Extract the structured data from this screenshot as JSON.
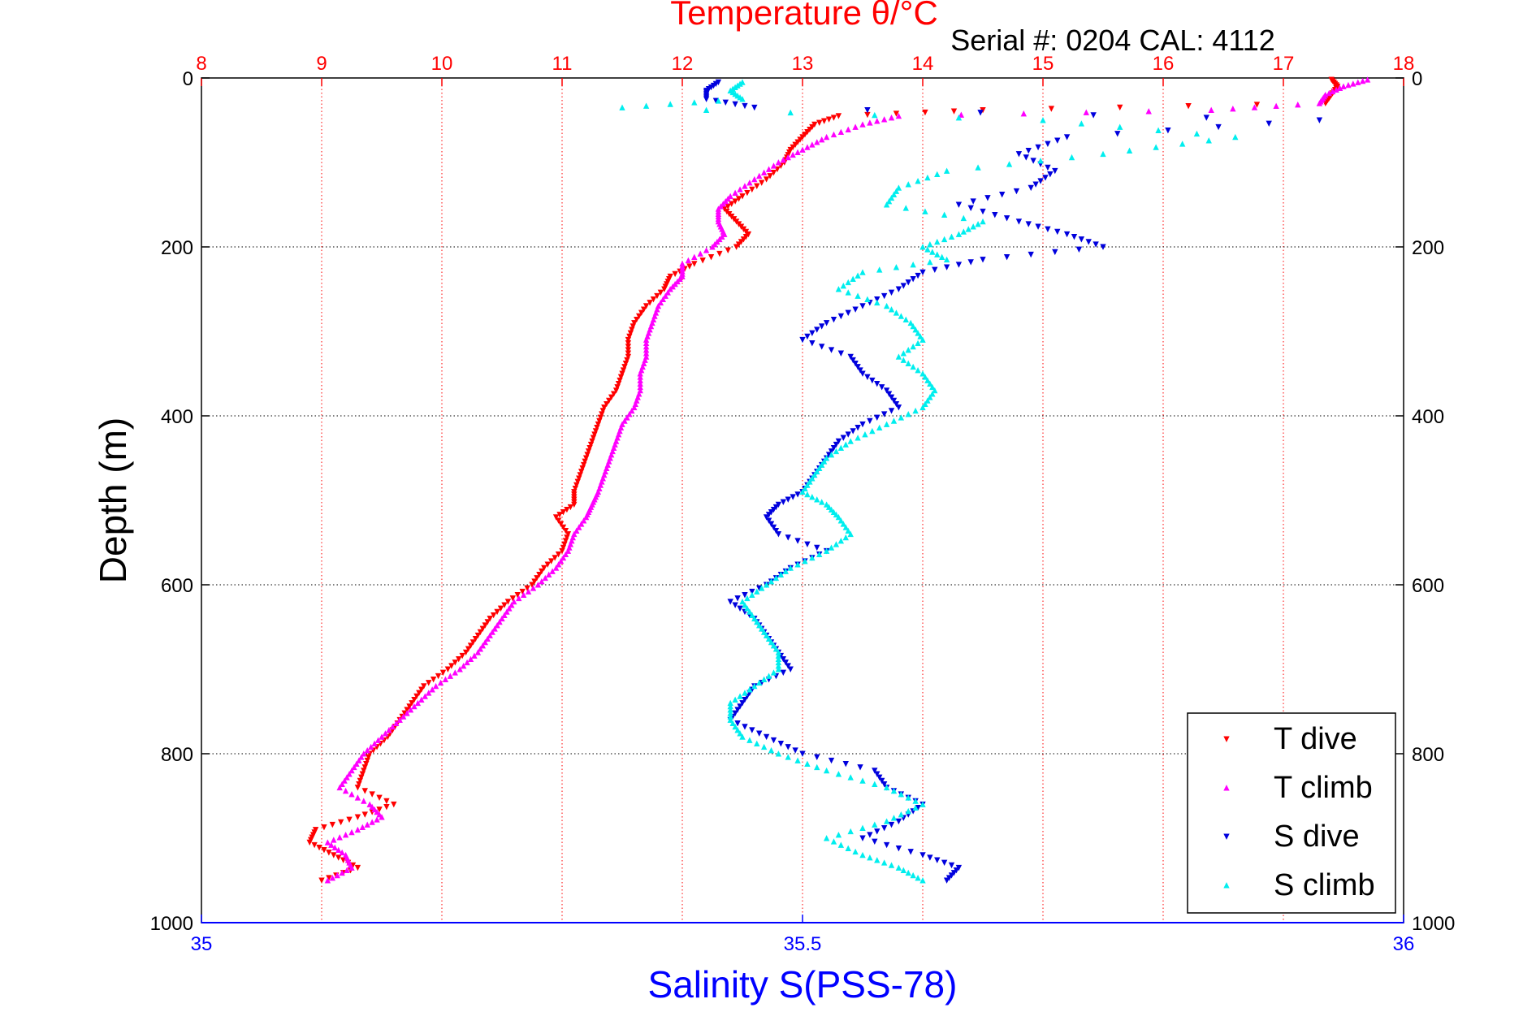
{
  "chart_data": {
    "type": "scatter",
    "title": "Temperature θ/°C",
    "subtitle": "Serial #: 0204  CAL: 4112",
    "xlabel": "Salinity S(PSS-78)",
    "ylabel": "Depth (m)",
    "x_temperature_lim": [
      8,
      18
    ],
    "x_salinity_lim": [
      35,
      36
    ],
    "ylim": [
      0,
      1000
    ],
    "y_reversed": true,
    "temperature_ticks": [
      "8",
      "9",
      "10",
      "11",
      "12",
      "13",
      "14",
      "15",
      "16",
      "17",
      "18"
    ],
    "salinity_ticks": [
      "35",
      "35.5",
      "36"
    ],
    "depth_ticks": [
      "0",
      "200",
      "400",
      "600",
      "800",
      "1000"
    ],
    "grid": true,
    "legend_position": "bottom-right",
    "colors": {
      "temperature_axis": "#ff0000",
      "salinity_axis": "#0000ff",
      "t_dive": "#ff0000",
      "t_climb": "#ff00ff",
      "s_dive": "#0000dd",
      "s_climb": "#00eeee"
    },
    "series": [
      {
        "name": "T dive",
        "axis": "temperature",
        "marker": "triangle-down",
        "depth": [
          2,
          10,
          20,
          30,
          38,
          45,
          55,
          70,
          85,
          100,
          120,
          140,
          155,
          170,
          185,
          200,
          220,
          235,
          250,
          270,
          290,
          310,
          330,
          350,
          370,
          390,
          410,
          430,
          450,
          470,
          490,
          505,
          520,
          540,
          560,
          580,
          600,
          620,
          640,
          660,
          680,
          700,
          720,
          740,
          760,
          780,
          800,
          820,
          840,
          860,
          875,
          890,
          905,
          920,
          935,
          950
        ],
        "values": [
          17.4,
          17.45,
          17.4,
          17.35,
          14.5,
          13.3,
          13.1,
          13.0,
          12.9,
          12.85,
          12.7,
          12.5,
          12.35,
          12.45,
          12.55,
          12.45,
          12.1,
          11.9,
          11.85,
          11.7,
          11.6,
          11.55,
          11.55,
          11.5,
          11.45,
          11.35,
          11.3,
          11.25,
          11.2,
          11.15,
          11.1,
          11.1,
          10.95,
          11.05,
          11.0,
          10.85,
          10.75,
          10.55,
          10.4,
          10.3,
          10.2,
          10.05,
          9.85,
          9.75,
          9.65,
          9.55,
          9.4,
          9.35,
          9.3,
          9.6,
          9.3,
          8.95,
          8.9,
          9.1,
          9.3,
          9.0
        ]
      },
      {
        "name": "T climb",
        "axis": "temperature",
        "marker": "triangle-up",
        "depth": [
          2,
          10,
          20,
          30,
          38,
          45,
          55,
          70,
          85,
          100,
          120,
          140,
          155,
          170,
          185,
          200,
          220,
          235,
          250,
          270,
          290,
          310,
          330,
          350,
          370,
          390,
          410,
          430,
          450,
          470,
          490,
          505,
          520,
          540,
          560,
          580,
          600,
          620,
          640,
          660,
          680,
          700,
          720,
          740,
          760,
          780,
          800,
          820,
          840,
          860,
          875,
          890,
          905,
          920,
          935,
          950
        ],
        "values": [
          17.7,
          17.5,
          17.35,
          17.3,
          16.4,
          13.8,
          13.5,
          13.2,
          13.0,
          12.8,
          12.6,
          12.4,
          12.3,
          12.3,
          12.35,
          12.25,
          12.0,
          12.0,
          11.9,
          11.8,
          11.75,
          11.7,
          11.7,
          11.65,
          11.65,
          11.6,
          11.5,
          11.45,
          11.4,
          11.35,
          11.3,
          11.25,
          11.2,
          11.1,
          11.05,
          10.95,
          10.8,
          10.6,
          10.5,
          10.4,
          10.3,
          10.15,
          9.95,
          9.8,
          9.65,
          9.5,
          9.35,
          9.25,
          9.15,
          9.4,
          9.5,
          9.3,
          9.05,
          9.2,
          9.25,
          9.05
        ]
      },
      {
        "name": "S dive",
        "axis": "salinity",
        "marker": "triangle-down",
        "depth": [
          5,
          15,
          25,
          35,
          50,
          70,
          90,
          110,
          130,
          150,
          170,
          185,
          200,
          215,
          230,
          250,
          270,
          290,
          310,
          330,
          350,
          370,
          390,
          410,
          430,
          450,
          470,
          490,
          505,
          520,
          540,
          560,
          580,
          600,
          620,
          640,
          660,
          680,
          700,
          720,
          740,
          760,
          780,
          800,
          820,
          840,
          860,
          880,
          900,
          920,
          935,
          950
        ],
        "values": [
          35.43,
          35.42,
          35.42,
          35.46,
          35.93,
          35.72,
          35.68,
          35.71,
          35.69,
          35.63,
          35.68,
          35.72,
          35.75,
          35.65,
          35.6,
          35.58,
          35.55,
          35.52,
          35.5,
          35.54,
          35.55,
          35.57,
          35.58,
          35.55,
          35.53,
          35.52,
          35.51,
          35.5,
          35.48,
          35.47,
          35.48,
          35.52,
          35.49,
          35.47,
          35.44,
          35.46,
          35.47,
          35.48,
          35.49,
          35.46,
          35.45,
          35.44,
          35.47,
          35.5,
          35.56,
          35.57,
          35.6,
          35.58,
          35.55,
          35.6,
          35.63,
          35.62
        ]
      },
      {
        "name": "S climb",
        "axis": "salinity",
        "marker": "triangle-up",
        "depth": [
          5,
          15,
          25,
          35,
          50,
          70,
          90,
          110,
          130,
          150,
          170,
          185,
          200,
          215,
          230,
          250,
          270,
          290,
          310,
          330,
          350,
          370,
          390,
          410,
          430,
          450,
          470,
          490,
          505,
          520,
          540,
          560,
          580,
          600,
          620,
          640,
          660,
          680,
          700,
          720,
          740,
          760,
          780,
          800,
          820,
          840,
          860,
          880,
          900,
          920,
          935,
          950
        ],
        "values": [
          35.45,
          35.44,
          35.45,
          35.35,
          35.7,
          35.86,
          35.75,
          35.62,
          35.58,
          35.57,
          35.65,
          35.63,
          35.6,
          35.62,
          35.55,
          35.53,
          35.57,
          35.59,
          35.6,
          35.58,
          35.6,
          35.61,
          35.6,
          35.57,
          35.54,
          35.52,
          35.51,
          35.5,
          35.52,
          35.53,
          35.54,
          35.52,
          35.49,
          35.47,
          35.45,
          35.46,
          35.47,
          35.48,
          35.48,
          35.46,
          35.44,
          35.44,
          35.45,
          35.48,
          35.52,
          35.57,
          35.6,
          35.57,
          35.52,
          35.55,
          35.58,
          35.6
        ]
      }
    ]
  }
}
